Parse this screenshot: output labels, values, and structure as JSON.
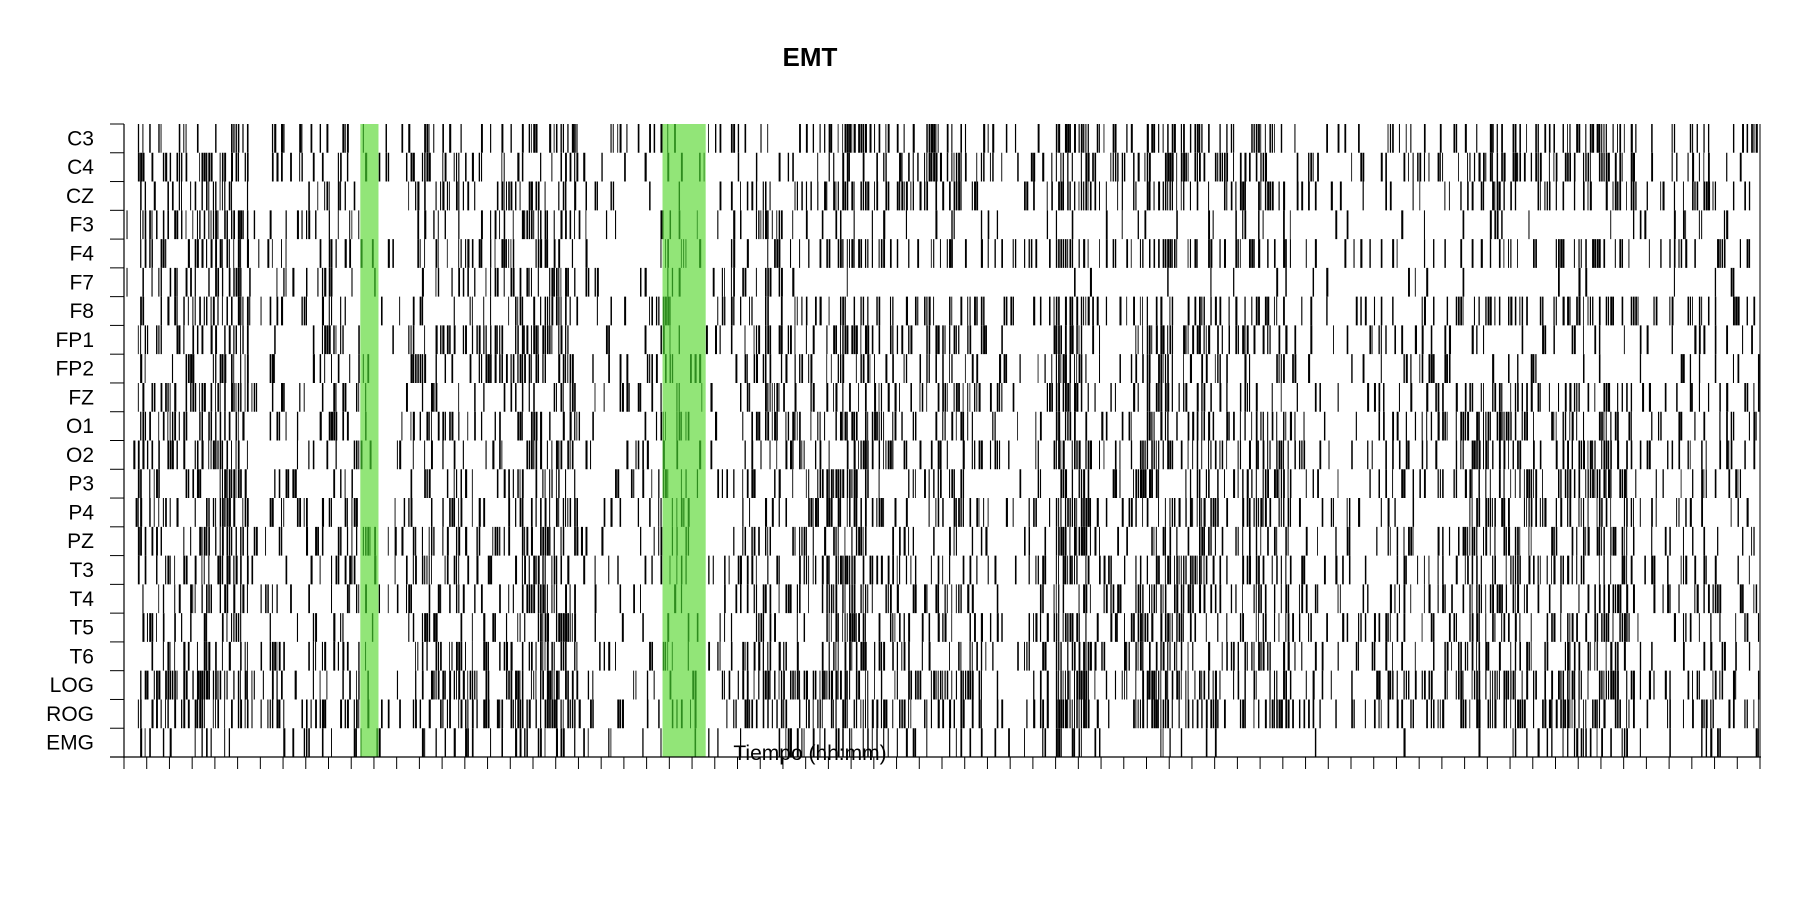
{
  "chart_data": {
    "type": "heatmap",
    "title": "EMT",
    "xlabel": "Tiempo (hh:mm)",
    "ylabel": "",
    "channels": [
      "C3",
      "C4",
      "CZ",
      "F3",
      "F4",
      "F7",
      "F8",
      "FP1",
      "FP2",
      "FZ",
      "O1",
      "O2",
      "P3",
      "P4",
      "PZ",
      "T3",
      "T4",
      "T5",
      "T6",
      "LOG",
      "ROG",
      "EMG"
    ],
    "n_epochs": 720,
    "x_tick_count": 73,
    "values": "binary event raster (black = event present, white = none) per channel per time epoch",
    "highlight_intervals": [
      {
        "start": 104,
        "end": 112,
        "color": "#7fe060"
      },
      {
        "start": 237,
        "end": 256,
        "color": "#7fe060"
      }
    ],
    "colors": {
      "event": "#000000",
      "background": "#ffffff",
      "highlight": "#7fe060",
      "highlight_dark": "#2e8b1e"
    },
    "sparse_regions": [
      {
        "channel": "F3",
        "start": 290,
        "end": 720,
        "density": 0.12
      },
      {
        "channel": "F7",
        "start": 290,
        "end": 720,
        "density": 0.05
      },
      {
        "channel": "FP1",
        "start": 585,
        "end": 680,
        "density": 0.15
      },
      {
        "channel": "FP2",
        "start": 585,
        "end": 680,
        "density": 0.15
      },
      {
        "channel": "EMG",
        "start": 430,
        "end": 600,
        "density": 0.05
      }
    ],
    "grid": false,
    "legend": "none"
  }
}
